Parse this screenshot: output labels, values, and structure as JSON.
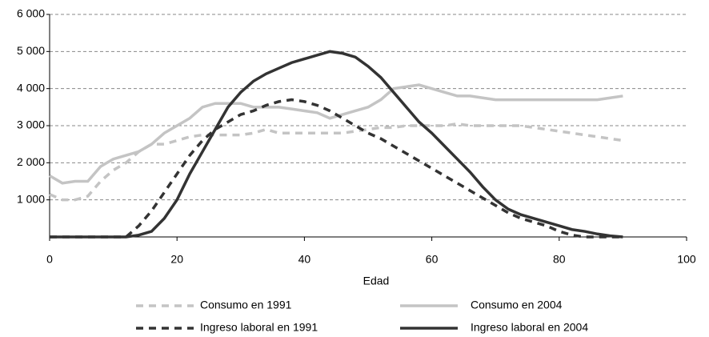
{
  "chart_data": {
    "type": "line",
    "x_label": "Edad",
    "x": [
      0,
      2,
      4,
      6,
      8,
      10,
      12,
      14,
      16,
      18,
      20,
      22,
      24,
      26,
      28,
      30,
      32,
      34,
      36,
      38,
      40,
      42,
      44,
      46,
      48,
      50,
      52,
      54,
      56,
      58,
      60,
      62,
      64,
      66,
      68,
      70,
      72,
      74,
      76,
      78,
      80,
      82,
      84,
      86,
      88,
      90
    ],
    "xlim": [
      0,
      100
    ],
    "xticks": [
      0,
      20,
      40,
      60,
      80,
      100
    ],
    "ylim": [
      0,
      6000
    ],
    "yticks": [
      {
        "value": 1000,
        "label": "1 000"
      },
      {
        "value": 2000,
        "label": "2 000"
      },
      {
        "value": 3000,
        "label": "3 000"
      },
      {
        "value": 4000,
        "label": "4 000"
      },
      {
        "value": 5000,
        "label": "5 000"
      },
      {
        "value": 6000,
        "label": "6 000"
      }
    ],
    "grid": true,
    "legend": "bottom",
    "series": [
      {
        "name": "Consumo en 1991",
        "color": "#c4c4c4",
        "style": "dashed",
        "values": [
          1150,
          1000,
          1000,
          1100,
          1500,
          1800,
          2000,
          2300,
          2500,
          2500,
          2600,
          2700,
          2750,
          2750,
          2750,
          2750,
          2800,
          2900,
          2800,
          2800,
          2800,
          2800,
          2800,
          2800,
          2850,
          2900,
          2950,
          2950,
          3000,
          3000,
          3000,
          3000,
          3050,
          3000,
          3000,
          3000,
          3000,
          3000,
          2950,
          2900,
          2850,
          2800,
          2750,
          2700,
          2650,
          2600
        ]
      },
      {
        "name": "Consumo en 2004",
        "color": "#c4c4c4",
        "style": "solid",
        "values": [
          1650,
          1450,
          1500,
          1500,
          1900,
          2100,
          2200,
          2300,
          2500,
          2800,
          3000,
          3200,
          3500,
          3600,
          3600,
          3600,
          3500,
          3500,
          3500,
          3450,
          3400,
          3350,
          3200,
          3300,
          3400,
          3500,
          3700,
          4000,
          4050,
          4100,
          4000,
          3900,
          3800,
          3800,
          3750,
          3700,
          3700,
          3700,
          3700,
          3700,
          3700,
          3700,
          3700,
          3700,
          3750,
          3800
        ]
      },
      {
        "name": "Ingreso laboral en 1991",
        "color": "#333333",
        "style": "dashed",
        "values": [
          0,
          0,
          0,
          0,
          0,
          0,
          0,
          300,
          700,
          1200,
          1700,
          2200,
          2600,
          2900,
          3100,
          3300,
          3400,
          3550,
          3650,
          3700,
          3650,
          3550,
          3400,
          3200,
          3000,
          2800,
          2650,
          2450,
          2250,
          2050,
          1850,
          1650,
          1450,
          1250,
          1050,
          850,
          650,
          500,
          400,
          300,
          150,
          50,
          0,
          0,
          0,
          0
        ]
      },
      {
        "name": "Ingreso laboral en 2004",
        "color": "#333333",
        "style": "solid",
        "values": [
          0,
          0,
          0,
          0,
          0,
          0,
          0,
          50,
          150,
          500,
          1000,
          1700,
          2300,
          2900,
          3500,
          3900,
          4200,
          4400,
          4550,
          4700,
          4800,
          4900,
          5000,
          4950,
          4850,
          4600,
          4300,
          3900,
          3500,
          3100,
          2800,
          2450,
          2100,
          1750,
          1350,
          1000,
          750,
          600,
          500,
          400,
          300,
          200,
          150,
          80,
          30,
          0
        ]
      }
    ]
  }
}
